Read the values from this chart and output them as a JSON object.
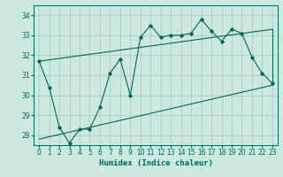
{
  "xlabel": "Humidex (Indice chaleur)",
  "background_color": "#cce8e0",
  "grid_color": "#aacfc8",
  "line_color": "#006858",
  "xlim": [
    -0.5,
    23.5
  ],
  "ylim": [
    27.5,
    34.5
  ],
  "yticks": [
    28,
    29,
    30,
    31,
    32,
    33,
    34
  ],
  "xticks": [
    0,
    1,
    2,
    3,
    4,
    5,
    6,
    7,
    8,
    9,
    10,
    11,
    12,
    13,
    14,
    15,
    16,
    17,
    18,
    19,
    20,
    21,
    22,
    23
  ],
  "main_line": {
    "x": [
      0,
      1,
      2,
      3,
      4,
      5,
      6,
      7,
      8,
      9,
      10,
      11,
      12,
      13,
      14,
      15,
      16,
      17,
      18,
      19,
      20,
      21,
      22,
      23
    ],
    "y": [
      31.7,
      30.4,
      28.4,
      27.6,
      28.3,
      28.3,
      29.4,
      31.1,
      31.8,
      30.0,
      32.9,
      33.5,
      32.9,
      33.0,
      33.0,
      33.1,
      33.8,
      33.2,
      32.7,
      33.3,
      33.1,
      31.9,
      31.1,
      30.6
    ]
  },
  "upper_line": {
    "x": [
      0,
      23
    ],
    "y": [
      31.7,
      33.3
    ]
  },
  "lower_line": {
    "x": [
      0,
      23
    ],
    "y": [
      27.8,
      30.5
    ]
  },
  "figwidth": 3.2,
  "figheight": 2.0,
  "dpi": 100
}
